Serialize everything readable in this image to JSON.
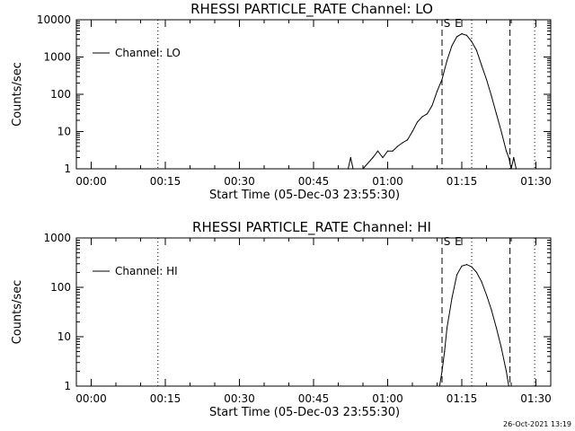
{
  "timestamp": "26-Oct-2021 13:19",
  "chart_data": [
    {
      "type": "line",
      "title": "RHESSI PARTICLE_RATE Channel: LO",
      "xlabel": "Start Time (05-Dec-03 23:55:30)",
      "ylabel": "Counts/sec",
      "yscale": "log",
      "ylim": [
        1,
        10000
      ],
      "ytick_labels": [
        "1",
        "10",
        "100",
        "1000",
        "10000"
      ],
      "xlim_minutes_from_start": [
        -3,
        93
      ],
      "xtick_labels": [
        "00:00",
        "00:15",
        "00:30",
        "00:45",
        "01:00",
        "01:15",
        "01:30"
      ],
      "legend": {
        "label": "Channel: LO",
        "position": "top-left"
      },
      "markers": {
        "dotted": [
          "00:13:30",
          "01:17:00",
          "01:29:45"
        ],
        "dashed": [
          "01:11:00",
          "01:24:45"
        ],
        "labels": [
          {
            "text": "S",
            "at": "01:12:00"
          },
          {
            "text": "E",
            "at": "01:14:15"
          }
        ]
      },
      "series": [
        {
          "name": "Channel: LO",
          "x": [
            "00:52",
            "00:52:30",
            "00:53",
            "00:55",
            "00:57",
            "00:58",
            "00:59",
            "01:00",
            "01:01",
            "01:02",
            "01:03",
            "01:04",
            "01:05",
            "01:06",
            "01:07",
            "01:08",
            "01:09",
            "01:10",
            "01:11",
            "01:12",
            "01:13",
            "01:14",
            "01:15",
            "01:16",
            "01:17",
            "01:18",
            "01:19",
            "01:20",
            "01:21",
            "01:22",
            "01:23",
            "01:24",
            "01:24:30",
            "01:25",
            "01:25:30",
            "01:26"
          ],
          "values": [
            1,
            2,
            1,
            1,
            2,
            3,
            2,
            3,
            3,
            4,
            5,
            6,
            10,
            18,
            25,
            30,
            50,
            120,
            250,
            800,
            2000,
            3500,
            4200,
            3800,
            2600,
            1500,
            600,
            250,
            90,
            30,
            10,
            3,
            2,
            1,
            2,
            1
          ]
        }
      ]
    },
    {
      "type": "line",
      "title": "RHESSI PARTICLE_RATE Channel: HI",
      "xlabel": "Start Time (05-Dec-03 23:55:30)",
      "ylabel": "Counts/sec",
      "yscale": "log",
      "ylim": [
        1,
        1000
      ],
      "ytick_labels": [
        "1",
        "10",
        "100",
        "1000"
      ],
      "xlim_minutes_from_start": [
        -3,
        93
      ],
      "xtick_labels": [
        "00:00",
        "00:15",
        "00:30",
        "00:45",
        "01:00",
        "01:15",
        "01:30"
      ],
      "legend": {
        "label": "Channel: HI",
        "position": "top-left"
      },
      "markers": {
        "dotted": [
          "00:13:30",
          "01:17:00",
          "01:29:45"
        ],
        "dashed": [
          "01:11:00",
          "01:24:45"
        ],
        "labels": [
          {
            "text": "S",
            "at": "01:12:00"
          },
          {
            "text": "E",
            "at": "01:14:15"
          }
        ]
      },
      "series": [
        {
          "name": "Channel: HI",
          "x": [
            "01:10:30",
            "01:11",
            "01:11:30",
            "01:12",
            "01:13",
            "01:14",
            "01:15",
            "01:16",
            "01:17",
            "01:18",
            "01:19",
            "01:20",
            "01:21",
            "01:22",
            "01:23",
            "01:24",
            "01:24:30"
          ],
          "values": [
            1,
            2,
            5,
            15,
            60,
            180,
            270,
            290,
            260,
            200,
            130,
            70,
            35,
            15,
            6,
            2,
            1
          ]
        }
      ]
    }
  ]
}
